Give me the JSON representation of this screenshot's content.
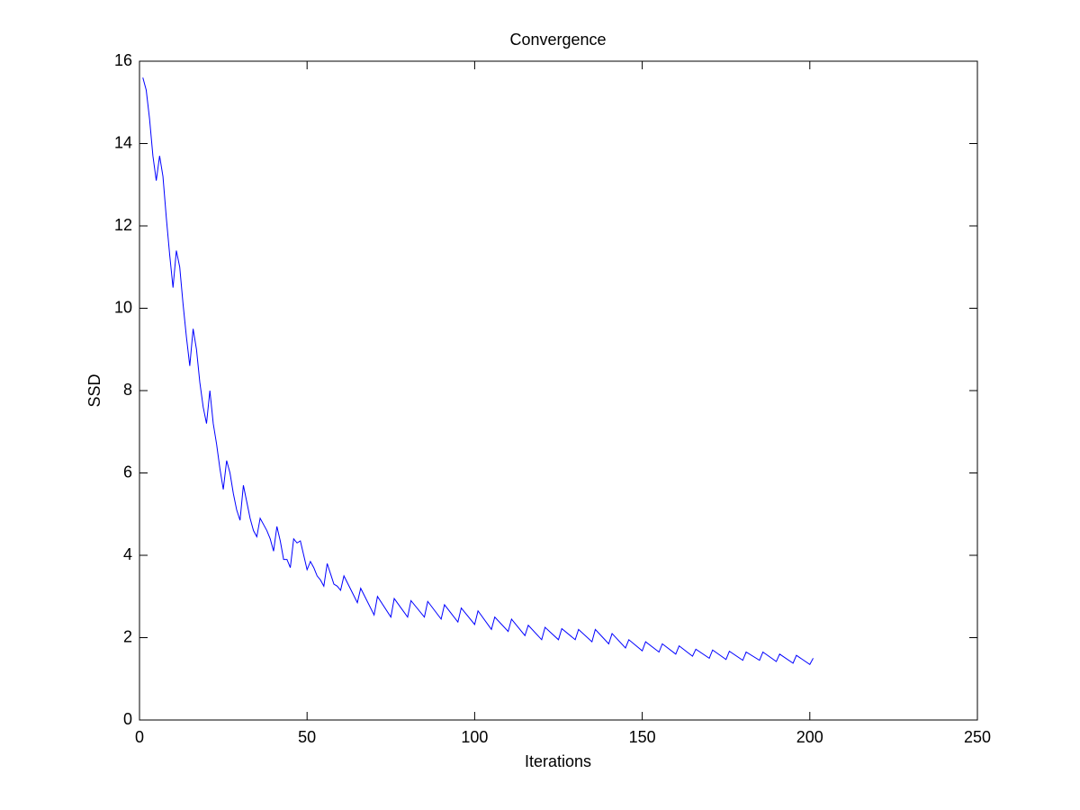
{
  "chart_data": {
    "type": "line",
    "title": "Convergence",
    "x_label": "Iterations",
    "y_label": "SSD",
    "color": "#0000ff",
    "x": [
      1,
      2,
      3,
      4,
      5,
      6,
      7,
      8,
      9,
      10,
      11,
      12,
      13,
      14,
      15,
      16,
      17,
      18,
      19,
      20,
      21,
      22,
      23,
      24,
      25,
      26,
      27,
      28,
      29,
      30,
      31,
      32,
      33,
      34,
      35,
      36,
      37,
      38,
      39,
      40,
      41,
      42,
      43,
      44,
      45,
      46,
      47,
      48,
      49,
      50,
      51,
      52,
      53,
      54,
      55,
      56,
      57,
      58,
      59,
      60,
      61,
      65,
      66,
      70,
      71,
      75,
      76,
      80,
      81,
      85,
      86,
      90,
      91,
      95,
      96,
      100,
      101,
      105,
      106,
      110,
      111,
      115,
      116,
      120,
      121,
      125,
      126,
      130,
      131,
      135,
      136,
      140,
      141,
      145,
      146,
      150,
      151,
      155,
      156,
      160,
      161,
      165,
      166,
      170,
      171,
      175,
      176,
      180,
      181,
      185,
      186,
      190,
      191,
      195,
      196,
      200,
      201
    ],
    "values": [
      15.6,
      15.3,
      14.6,
      13.7,
      13.1,
      13.7,
      13.2,
      12.2,
      11.3,
      10.5,
      11.4,
      11.0,
      10.1,
      9.3,
      8.6,
      9.5,
      9.0,
      8.2,
      7.6,
      7.2,
      8.0,
      7.2,
      6.7,
      6.1,
      5.6,
      6.3,
      6.0,
      5.5,
      5.1,
      4.85,
      5.7,
      5.3,
      4.9,
      4.6,
      4.45,
      4.9,
      4.75,
      4.6,
      4.4,
      4.1,
      4.7,
      4.35,
      3.9,
      3.9,
      3.7,
      4.4,
      4.3,
      4.35,
      4.0,
      3.65,
      3.85,
      3.7,
      3.5,
      3.4,
      3.25,
      3.8,
      3.55,
      3.3,
      3.25,
      3.15,
      3.5,
      2.85,
      3.2,
      2.55,
      3.0,
      2.5,
      2.95,
      2.5,
      2.9,
      2.5,
      2.88,
      2.45,
      2.8,
      2.38,
      2.72,
      2.32,
      2.65,
      2.2,
      2.5,
      2.15,
      2.45,
      2.05,
      2.3,
      1.95,
      2.25,
      1.95,
      2.22,
      1.95,
      2.2,
      1.9,
      2.2,
      1.85,
      2.1,
      1.75,
      1.95,
      1.68,
      1.9,
      1.65,
      1.85,
      1.6,
      1.8,
      1.55,
      1.72,
      1.5,
      1.7,
      1.47,
      1.67,
      1.45,
      1.65,
      1.45,
      1.65,
      1.42,
      1.6,
      1.38,
      1.57,
      1.35,
      1.5
    ],
    "xlim": [
      0,
      250
    ],
    "xticks": [
      0,
      50,
      100,
      150,
      200,
      250
    ],
    "ylim": [
      0,
      16
    ],
    "yticks": [
      0,
      2,
      4,
      6,
      8,
      10,
      12,
      14,
      16
    ],
    "grid": false
  }
}
